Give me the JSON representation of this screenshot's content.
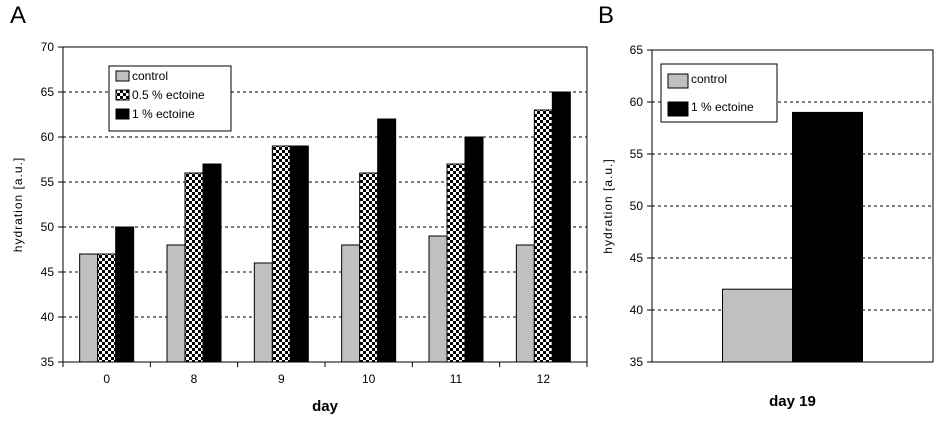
{
  "colors": {
    "control": "#c0c0c0",
    "ectoine_1": "#000000",
    "checker_dark": "#000000",
    "checker_light": "#ffffff"
  },
  "chart_data": [
    {
      "panel": "A",
      "type": "bar",
      "title": "",
      "xlabel": "day",
      "ylabel": "hydration [a.u.]",
      "ylim": [
        35,
        70
      ],
      "yticks": [
        35,
        40,
        45,
        50,
        55,
        60,
        65,
        70
      ],
      "grid": "horizontal-dashed",
      "legend_position": "top-left",
      "categories": [
        "0",
        "8",
        "9",
        "10",
        "11",
        "12"
      ],
      "series": [
        {
          "name": "control",
          "pattern": "solid-gray",
          "values": [
            47,
            48,
            46,
            48,
            49,
            48
          ]
        },
        {
          "name": "0.5 % ectoine",
          "pattern": "checkered",
          "values": [
            47,
            56,
            59,
            56,
            57,
            63
          ]
        },
        {
          "name": "1 % ectoine",
          "pattern": "solid-black",
          "values": [
            50,
            57,
            59,
            62,
            60,
            65
          ]
        }
      ]
    },
    {
      "panel": "B",
      "type": "bar",
      "title": "",
      "xlabel": "day 19",
      "ylabel": "hydration [a.u.]",
      "ylim": [
        35,
        65
      ],
      "yticks": [
        35,
        40,
        45,
        50,
        55,
        60,
        65
      ],
      "grid": "horizontal-dashed",
      "legend_position": "top-left",
      "categories": [
        "19"
      ],
      "series": [
        {
          "name": "control",
          "pattern": "solid-gray",
          "values": [
            42
          ]
        },
        {
          "name": "1 % ectoine",
          "pattern": "solid-black",
          "values": [
            59
          ]
        }
      ]
    }
  ]
}
